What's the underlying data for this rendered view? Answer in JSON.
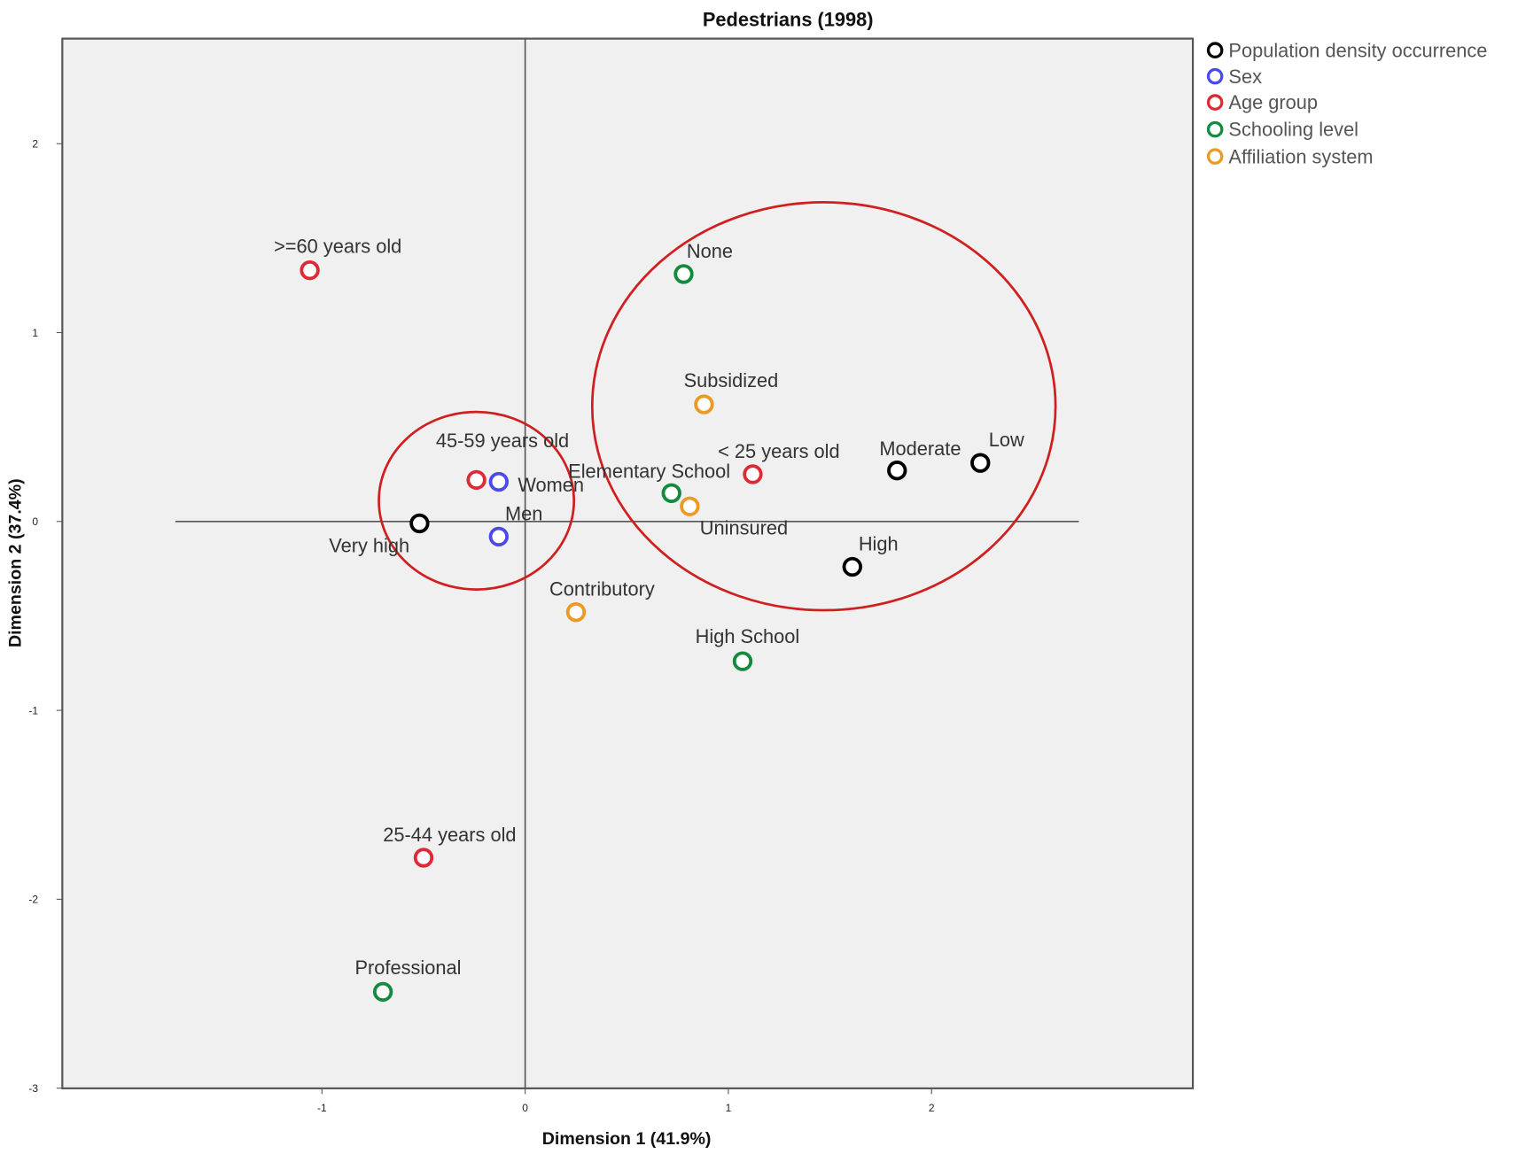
{
  "chart_data": {
    "type": "scatter",
    "title": "Pedestrians (1998)",
    "xlabel": "Dimension 1 (41.9%)",
    "ylabel": "Dimension 2 (37.4%)",
    "xlim": [
      -2.28,
      3.28
    ],
    "ylim": [
      -3,
      2.56
    ],
    "xticks": [
      -1,
      0,
      1,
      2
    ],
    "yticks": [
      2,
      1,
      0,
      -1,
      -2,
      -3
    ],
    "grid": false,
    "legend_position": "right-top",
    "series": [
      {
        "name": "Population density occurrence",
        "color": "#000000",
        "points": [
          {
            "label": "Very high",
            "x": -0.52,
            "y": -0.01
          },
          {
            "label": "Moderate",
            "x": 1.83,
            "y": 0.27
          },
          {
            "label": "Low",
            "x": 2.24,
            "y": 0.31
          },
          {
            "label": "High",
            "x": 1.61,
            "y": -0.24
          }
        ]
      },
      {
        "name": "Sex",
        "color": "#4a4ae8",
        "points": [
          {
            "label": "Women",
            "x": -0.13,
            "y": 0.21
          },
          {
            "label": "Men",
            "x": -0.13,
            "y": -0.08
          }
        ]
      },
      {
        "name": "Age group",
        "color": "#dd2a36",
        "points": [
          {
            "label": ">=60 years old",
            "x": -1.06,
            "y": 1.33
          },
          {
            "label": "45-59 years old",
            "x": -0.24,
            "y": 0.22
          },
          {
            "label": "< 25 years old",
            "x": 1.12,
            "y": 0.25
          },
          {
            "label": "25-44 years old",
            "x": -0.5,
            "y": -1.78
          }
        ]
      },
      {
        "name": "Schooling level",
        "color": "#138a3c",
        "points": [
          {
            "label": "None",
            "x": 0.78,
            "y": 1.31
          },
          {
            "label": "Elementary School",
            "x": 0.72,
            "y": 0.15
          },
          {
            "label": "High School",
            "x": 1.07,
            "y": -0.74
          },
          {
            "label": "Professional",
            "x": -0.7,
            "y": -2.49
          }
        ]
      },
      {
        "name": "Affiliation system",
        "color": "#eb9a25",
        "points": [
          {
            "label": "Subsidized",
            "x": 0.88,
            "y": 0.62
          },
          {
            "label": "Uninsured",
            "x": 0.81,
            "y": 0.08
          },
          {
            "label": "Contributory",
            "x": 0.25,
            "y": -0.48
          }
        ]
      }
    ],
    "annotations": [
      {
        "type": "ellipse",
        "color": "#d01f1f",
        "center": [
          -0.24,
          0.11
        ],
        "rx": 0.48,
        "ry": 0.47
      },
      {
        "type": "ellipse",
        "color": "#d01f1f",
        "center": [
          1.47,
          0.61
        ],
        "rx": 1.14,
        "ry": 1.08
      }
    ]
  }
}
